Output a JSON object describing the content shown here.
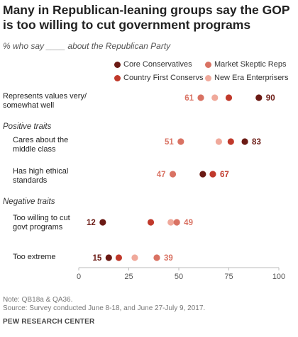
{
  "header": {
    "title": "Many in Republican-leaning groups say the GOP is too willing to cut government programs",
    "subtitle": "% who say ____ about the Republican Party"
  },
  "footer": {
    "note": "Note: QB18a & QA36.",
    "source": "Source: Survey conducted June 8-18, and June 27-July 9, 2017.",
    "org": "PEW RESEARCH CENTER"
  },
  "chart_data": {
    "type": "scatter",
    "xlim": [
      0,
      100
    ],
    "x_ticks": [
      0,
      25,
      50,
      75,
      100
    ],
    "grid": false,
    "legend_position": "top-right",
    "series": [
      {
        "name": "Core Conservatives",
        "color": "#6b1a14"
      },
      {
        "name": "Market Skeptic Reps",
        "color": "#d97263"
      },
      {
        "name": "Country First Conservs",
        "color": "#c0392b"
      },
      {
        "name": "New Era Enterprisers",
        "color": "#f0a99b"
      }
    ],
    "sections": [
      {
        "label": "",
        "rows": [
          {
            "label_lines": [
              "Represents values very/",
              "somewhat well"
            ],
            "values": [
              90,
              61,
              75,
              68
            ],
            "low_label": "61",
            "high_label": "90"
          }
        ]
      },
      {
        "label": "Positive traits",
        "rows": [
          {
            "label_lines": [
              "Cares about the",
              "middle class"
            ],
            "values": [
              83,
              51,
              76,
              70
            ],
            "low_label": "51",
            "high_label": "83"
          },
          {
            "label_lines": [
              "Has high ethical",
              "standards"
            ],
            "values": [
              62,
              47,
              67,
              67
            ],
            "low_label": "47",
            "high_label": "67"
          }
        ]
      },
      {
        "label": "Negative traits",
        "rows": [
          {
            "label_lines": [
              "Too willing to cut",
              "govt programs"
            ],
            "values": [
              12,
              49,
              36,
              46
            ],
            "low_label": "12",
            "high_label": "49"
          },
          {
            "label_lines": [
              "Too extreme"
            ],
            "values": [
              15,
              39,
              20,
              28
            ],
            "low_label": "15",
            "high_label": "39"
          }
        ]
      }
    ]
  }
}
